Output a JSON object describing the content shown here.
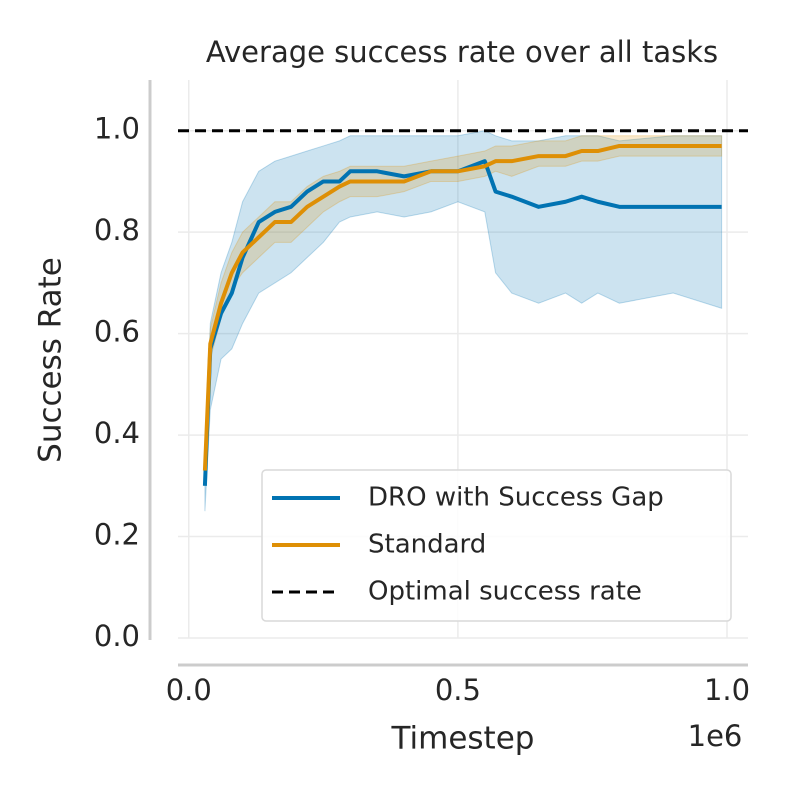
{
  "chart_data": {
    "type": "line",
    "title": "Average success rate over all tasks",
    "x_label": "Timestep",
    "y_label": "Success Rate",
    "x_offset_label": "1e6",
    "xlim": [
      -20000,
      1039000
    ],
    "ylim": [
      0,
      1.1
    ],
    "xticks": [
      {
        "value": 0,
        "label": "0.0"
      },
      {
        "value": 500000,
        "label": "0.5"
      },
      {
        "value": 1000000,
        "label": "1.0"
      }
    ],
    "yticks": [
      {
        "value": 0,
        "label": "0.0"
      },
      0.2,
      0.4,
      0.6,
      0.8,
      {
        "value": 1,
        "label": "1.0"
      }
    ],
    "grid": true,
    "legend": "lower right",
    "x": [
      30000,
      40000,
      60000,
      80000,
      100000,
      130000,
      160000,
      190000,
      220000,
      250000,
      280000,
      300000,
      350000,
      400000,
      450000,
      500000,
      550000,
      570000,
      600000,
      650000,
      700000,
      730000,
      760000,
      800000,
      900000,
      990000
    ],
    "series": [
      {
        "name": "DRO with Success Gap",
        "color": "#0173b2",
        "values": [
          0.3,
          0.57,
          0.64,
          0.68,
          0.75,
          0.82,
          0.84,
          0.85,
          0.88,
          0.9,
          0.9,
          0.92,
          0.92,
          0.91,
          0.92,
          0.92,
          0.94,
          0.88,
          0.87,
          0.85,
          0.86,
          0.87,
          0.86,
          0.85,
          0.85,
          0.85
        ],
        "lower": [
          0.25,
          0.45,
          0.55,
          0.57,
          0.62,
          0.68,
          0.7,
          0.72,
          0.75,
          0.78,
          0.82,
          0.83,
          0.84,
          0.83,
          0.84,
          0.86,
          0.84,
          0.72,
          0.68,
          0.66,
          0.68,
          0.66,
          0.68,
          0.66,
          0.68,
          0.65
        ],
        "upper": [
          0.33,
          0.62,
          0.72,
          0.78,
          0.86,
          0.92,
          0.94,
          0.95,
          0.96,
          0.97,
          0.98,
          0.99,
          0.99,
          0.99,
          0.99,
          0.99,
          1.0,
          0.99,
          0.98,
          0.98,
          0.99,
          0.99,
          0.99,
          0.98,
          0.99,
          0.99
        ]
      },
      {
        "name": "Standard",
        "color": "#de8f05",
        "values": [
          0.33,
          0.58,
          0.66,
          0.72,
          0.76,
          0.79,
          0.82,
          0.82,
          0.85,
          0.87,
          0.89,
          0.9,
          0.9,
          0.9,
          0.92,
          0.92,
          0.93,
          0.94,
          0.94,
          0.95,
          0.95,
          0.96,
          0.96,
          0.97,
          0.97,
          0.97
        ],
        "lower": [
          0.3,
          0.55,
          0.63,
          0.69,
          0.72,
          0.75,
          0.78,
          0.78,
          0.81,
          0.84,
          0.86,
          0.87,
          0.87,
          0.88,
          0.9,
          0.9,
          0.91,
          0.92,
          0.91,
          0.93,
          0.93,
          0.94,
          0.94,
          0.95,
          0.95,
          0.95
        ],
        "upper": [
          0.36,
          0.61,
          0.7,
          0.76,
          0.8,
          0.83,
          0.86,
          0.86,
          0.89,
          0.91,
          0.92,
          0.93,
          0.93,
          0.93,
          0.94,
          0.95,
          0.96,
          0.97,
          0.97,
          0.98,
          0.98,
          0.99,
          0.99,
          0.99,
          0.99,
          0.99
        ]
      }
    ],
    "reference_line": {
      "name": "Optimal success rate",
      "value": 1.0,
      "color": "#000000"
    }
  }
}
